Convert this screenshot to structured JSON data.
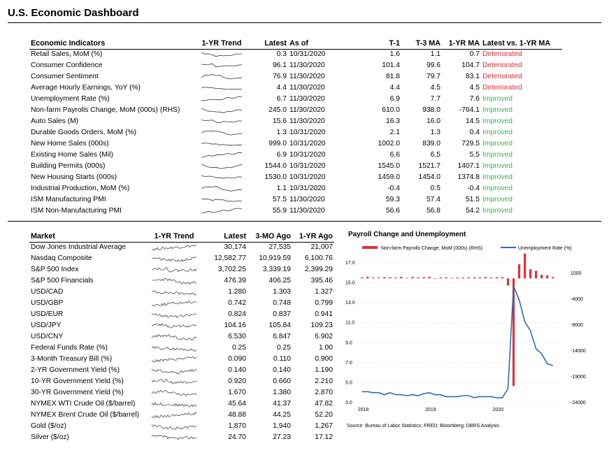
{
  "title": "U.S. Economic Dashboard",
  "indicators": {
    "headers": [
      "Economic Indicators",
      "1-YR Trend",
      "Latest",
      "As of",
      "T-1",
      "T-3 MA",
      "1-YR MA",
      "Latest vs. 1-YR MA"
    ],
    "rows": [
      {
        "name": "Retail Sales, MoM (%)",
        "latest": "0.3",
        "asof": "10/31/2020",
        "t1": "1.6",
        "t3": "1.1",
        "yr": "0.7",
        "status": "Deteriorated"
      },
      {
        "name": "Consumer Confidence",
        "latest": "96.1",
        "asof": "11/30/2020",
        "t1": "101.4",
        "t3": "99.6",
        "yr": "104.7",
        "status": "Deteriorated"
      },
      {
        "name": "Consumer Sentiment",
        "latest": "76.9",
        "asof": "11/30/2020",
        "t1": "81.8",
        "t3": "79.7",
        "yr": "83.1",
        "status": "Deteriorated"
      },
      {
        "name": "Average Hourly Earnings, YoY (%)",
        "latest": "4.4",
        "asof": "11/30/2020",
        "t1": "4.4",
        "t3": "4.5",
        "yr": "4.5",
        "status": "Deteriorated"
      },
      {
        "name": "Unemployment Rate (%)",
        "latest": "6.7",
        "asof": "11/30/2020",
        "t1": "6.9",
        "t3": "7.7",
        "yr": "7.6",
        "status": "Improved"
      },
      {
        "name": "Non-farm Payrolls Change, MoM (000s) (RHS)",
        "latest": "245.0",
        "asof": "11/30/2020",
        "t1": "610.0",
        "t3": "938.0",
        "yr": "-764.1",
        "status": "Improved"
      },
      {
        "name": "Auto Sales (M)",
        "latest": "15.6",
        "asof": "11/30/2020",
        "t1": "16.3",
        "t3": "16.0",
        "yr": "14.5",
        "status": "Improved"
      },
      {
        "name": "Durable Goods Orders, MoM (%)",
        "latest": "1.3",
        "asof": "10/31/2020",
        "t1": "2.1",
        "t3": "1.3",
        "yr": "0.4",
        "status": "Improved"
      },
      {
        "name": "New Home Sales (000s)",
        "latest": "999.0",
        "asof": "10/31/2020",
        "t1": "1002.0",
        "t3": "839.0",
        "yr": "729.5",
        "status": "Improved"
      },
      {
        "name": "Existing Home Sales (Mil)",
        "latest": "6.9",
        "asof": "10/31/2020",
        "t1": "6.6",
        "t3": "6.5",
        "yr": "5.5",
        "status": "Improved"
      },
      {
        "name": "Building Permits (000s)",
        "latest": "1544.0",
        "asof": "10/31/2020",
        "t1": "1545.0",
        "t3": "1521.7",
        "yr": "1407.1",
        "status": "Improved"
      },
      {
        "name": "New Housing Starts (000s)",
        "latest": "1530.0",
        "asof": "10/31/2020",
        "t1": "1459.0",
        "t3": "1454.0",
        "yr": "1374.8",
        "status": "Improved"
      },
      {
        "name": "Industrial Production, MoM (%)",
        "latest": "1.1",
        "asof": "10/31/2020",
        "t1": "-0.4",
        "t3": "0.5",
        "yr": "-0.4",
        "status": "Improved"
      },
      {
        "name": "ISM Manufacturing PMI",
        "latest": "57.5",
        "asof": "11/30/2020",
        "t1": "59.3",
        "t3": "57.4",
        "yr": "51.5",
        "status": "Improved"
      },
      {
        "name": "ISM Non-Manufacturing PMI",
        "latest": "55.9",
        "asof": "11/30/2020",
        "t1": "56.6",
        "t3": "56.8",
        "yr": "54.2",
        "status": "Improved"
      }
    ]
  },
  "market": {
    "headers": [
      "Market",
      "1-YR Trend",
      "Latest",
      "3-MO Ago",
      "1-YR Ago"
    ],
    "rows": [
      {
        "name": "Dow Jones Industrial Average",
        "latest": "30,174",
        "m3": "27,535",
        "y1": "21,007"
      },
      {
        "name": "Nasdaq Composite",
        "latest": "12,582.77",
        "m3": "10,919.59",
        "y1": "6,100.76"
      },
      {
        "name": "S&P 500 Index",
        "latest": "3,702.25",
        "m3": "3,339.19",
        "y1": "2,399.29"
      },
      {
        "name": "S&P 500 Financials",
        "latest": "476.39",
        "m3": "406.25",
        "y1": "395.46"
      },
      {
        "name": "USD/CAD",
        "latest": "1.280",
        "m3": "1.303",
        "y1": "1.327"
      },
      {
        "name": "USD/GBP",
        "latest": "0.742",
        "m3": "0.748",
        "y1": "0.799"
      },
      {
        "name": "USD/EUR",
        "latest": "0.824",
        "m3": "0.837",
        "y1": "0.941"
      },
      {
        "name": "USD/JPY",
        "latest": "104.16",
        "m3": "105.84",
        "y1": "109.23"
      },
      {
        "name": "USD/CNY",
        "latest": "6.530",
        "m3": "6.847",
        "y1": "6.902"
      },
      {
        "name": "Federal Funds Rate (%)",
        "latest": "0.25",
        "m3": "0.25",
        "y1": "1.00"
      },
      {
        "name": "3-Month Treasury Bill (%)",
        "latest": "0.090",
        "m3": "0.110",
        "y1": "0.900"
      },
      {
        "name": "2-YR Government Yield (%)",
        "latest": "0.140",
        "m3": "0.140",
        "y1": "1.190"
      },
      {
        "name": "10-YR Government Yield (%)",
        "latest": "0.920",
        "m3": "0.660",
        "y1": "2.210"
      },
      {
        "name": "30-YR Government Yield (%)",
        "latest": "1.670",
        "m3": "1.380",
        "y1": "2.870"
      },
      {
        "name": "NYMEX WTI Crude Oil ($/barrel)",
        "latest": "45.64",
        "m3": "41.37",
        "y1": "47.82"
      },
      {
        "name": "NYMEX Brent Crude Oil ($/barrel)",
        "latest": "48.88",
        "m3": "44.25",
        "y1": "52.20"
      },
      {
        "name": "Gold ($/oz)",
        "latest": "1,870",
        "m3": "1,940",
        "y1": "1,267"
      },
      {
        "name": "Silver ($/oz)",
        "latest": "24.70",
        "m3": "27.23",
        "y1": "17.12"
      }
    ]
  },
  "colors": {
    "deteriorated": "#e0303a",
    "improved": "#37b44a",
    "bar": "#e0303a",
    "line": "#2f6db5",
    "spark": "#333333"
  },
  "chart_data": {
    "type": "bar+line",
    "title": "Payroll Change and Unemployment",
    "source": "Source: Bureau of Labor Statistics; FRED; Bloomberg; DBRS Analysis",
    "x_ticks": [
      "2018",
      "2019",
      "2020"
    ],
    "x_range": [
      2017.92,
      2020.95
    ],
    "y_left": {
      "range": [
        3.0,
        17.0
      ],
      "ticks": [
        "17.0",
        "15.0",
        "13.0",
        "11.0",
        "9.0",
        "7.0",
        "5.0",
        "3.0"
      ],
      "tick_values": [
        17,
        15,
        13,
        11,
        9,
        7,
        5,
        3
      ]
    },
    "y_right": {
      "range": [
        -24000,
        3000
      ],
      "ticks": [
        "1000",
        "-4000",
        "-9000",
        "-14000",
        "-19000",
        "-24000"
      ],
      "tick_values": [
        1000,
        -4000,
        -9000,
        -14000,
        -19000,
        -24000
      ]
    },
    "series": [
      {
        "name": "Non-farm Payrolls Change, MoM (000s) (RHS)",
        "kind": "bar",
        "axis": "right",
        "x": [
          2018.0,
          2018.083,
          2018.167,
          2018.25,
          2018.333,
          2018.417,
          2018.5,
          2018.583,
          2018.667,
          2018.75,
          2018.833,
          2018.917,
          2019.0,
          2019.083,
          2019.167,
          2019.25,
          2019.333,
          2019.417,
          2019.5,
          2019.583,
          2019.667,
          2019.75,
          2019.833,
          2019.917,
          2020.0,
          2020.083,
          2020.167,
          2020.25,
          2020.333,
          2020.417,
          2020.5,
          2020.583,
          2020.667,
          2020.75,
          2020.833
        ],
        "values": [
          176,
          324,
          155,
          175,
          244,
          213,
          178,
          282,
          108,
          277,
          196,
          227,
          312,
          1,
          189,
          216,
          62,
          178,
          166,
          207,
          208,
          185,
          261,
          184,
          214,
          251,
          -1373,
          -20787,
          2725,
          4781,
          1761,
          1493,
          711,
          610,
          245
        ]
      },
      {
        "name": "Unemployment Rate (%)",
        "kind": "line",
        "axis": "left",
        "x": [
          2018.0,
          2018.083,
          2018.167,
          2018.25,
          2018.333,
          2018.417,
          2018.5,
          2018.583,
          2018.667,
          2018.75,
          2018.833,
          2018.917,
          2019.0,
          2019.083,
          2019.167,
          2019.25,
          2019.333,
          2019.417,
          2019.5,
          2019.583,
          2019.667,
          2019.75,
          2019.833,
          2019.917,
          2020.0,
          2020.083,
          2020.167,
          2020.25,
          2020.333,
          2020.417,
          2020.5,
          2020.583,
          2020.667,
          2020.75,
          2020.833
        ],
        "values": [
          4.1,
          4.1,
          4.0,
          4.0,
          3.8,
          4.0,
          3.8,
          3.8,
          3.7,
          3.8,
          3.7,
          3.9,
          4.0,
          3.8,
          3.8,
          3.6,
          3.6,
          3.6,
          3.7,
          3.7,
          3.5,
          3.6,
          3.6,
          3.6,
          3.5,
          3.5,
          4.4,
          14.7,
          13.3,
          11.1,
          10.2,
          8.4,
          7.9,
          6.9,
          6.7
        ]
      }
    ]
  }
}
